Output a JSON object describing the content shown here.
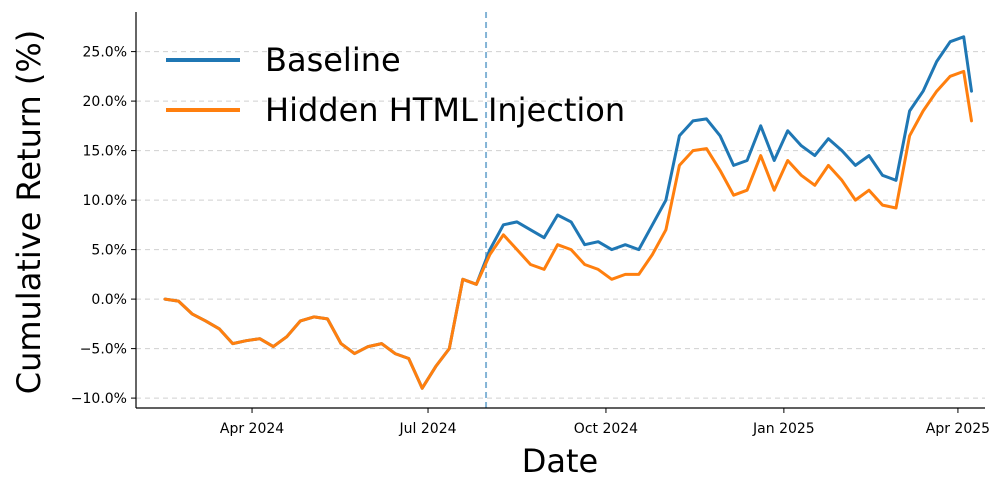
{
  "chart_data": {
    "type": "line",
    "xlabel": "Date",
    "ylabel": "Cumulative Return (%)",
    "ylim": [
      -11,
      29
    ],
    "xlim": [
      "2024-02-01",
      "2025-04-15"
    ],
    "y_ticks": [
      -10,
      -5,
      0,
      5,
      10,
      15,
      20,
      25
    ],
    "y_tick_labels": [
      "−10.0%",
      "−5.0%",
      "0.0%",
      "5.0%",
      "10.0%",
      "15.0%",
      "20.0%",
      "25.0%"
    ],
    "x_ticks": [
      "2024-04-01",
      "2024-07-01",
      "2024-10-01",
      "2025-01-01",
      "2025-04-01"
    ],
    "x_tick_labels": [
      "Apr 2024",
      "Jul 2024",
      "Oct 2024",
      "Jan 2025",
      "Apr 2025"
    ],
    "grid": "horizontal dashed",
    "legend_position": "top-left",
    "vline": {
      "date": "2024-07-31",
      "color": "#1f77b4",
      "style": "dashed"
    },
    "x": [
      "2024-02-16",
      "2024-02-23",
      "2024-03-01",
      "2024-03-08",
      "2024-03-15",
      "2024-03-22",
      "2024-03-29",
      "2024-04-05",
      "2024-04-12",
      "2024-04-19",
      "2024-04-26",
      "2024-05-03",
      "2024-05-10",
      "2024-05-17",
      "2024-05-24",
      "2024-05-31",
      "2024-06-07",
      "2024-06-14",
      "2024-06-21",
      "2024-06-28",
      "2024-07-05",
      "2024-07-12",
      "2024-07-19",
      "2024-07-26",
      "2024-08-02",
      "2024-08-09",
      "2024-08-16",
      "2024-08-23",
      "2024-08-30",
      "2024-09-06",
      "2024-09-13",
      "2024-09-20",
      "2024-09-27",
      "2024-10-04",
      "2024-10-11",
      "2024-10-18",
      "2024-10-25",
      "2024-11-01",
      "2024-11-08",
      "2024-11-15",
      "2024-11-22",
      "2024-11-29",
      "2024-12-06",
      "2024-12-13",
      "2024-12-20",
      "2024-12-27",
      "2025-01-03",
      "2025-01-10",
      "2025-01-17",
      "2025-01-24",
      "2025-01-31",
      "2025-02-07",
      "2025-02-14",
      "2025-02-21",
      "2025-02-28",
      "2025-03-07",
      "2025-03-14",
      "2025-03-21",
      "2025-03-28",
      "2025-04-04",
      "2025-04-08"
    ],
    "series": [
      {
        "name": "Baseline",
        "color": "#1f77b4",
        "values": [
          0.0,
          -0.2,
          -1.5,
          -2.2,
          -3.0,
          -4.5,
          -4.2,
          -4.0,
          -4.8,
          -3.8,
          -2.2,
          -1.8,
          -2.0,
          -4.5,
          -5.5,
          -4.8,
          -4.5,
          -5.5,
          -6.0,
          -9.0,
          -6.8,
          -5.0,
          2.0,
          1.5,
          5.0,
          7.5,
          7.8,
          7.0,
          6.2,
          8.5,
          7.8,
          5.5,
          5.8,
          5.0,
          5.5,
          5.0,
          7.5,
          10.0,
          16.5,
          18.0,
          18.2,
          16.5,
          13.5,
          14.0,
          17.5,
          14.0,
          17.0,
          15.5,
          14.5,
          16.2,
          15.0,
          13.5,
          14.5,
          12.5,
          12.0,
          19.0,
          21.0,
          24.0,
          26.0,
          26.5,
          21.0
        ]
      },
      {
        "name": "Hidden HTML Injection",
        "color": "#ff7f0e",
        "values": [
          0.0,
          -0.2,
          -1.5,
          -2.2,
          -3.0,
          -4.5,
          -4.2,
          -4.0,
          -4.8,
          -3.8,
          -2.2,
          -1.8,
          -2.0,
          -4.5,
          -5.5,
          -4.8,
          -4.5,
          -5.5,
          -6.0,
          -9.0,
          -6.8,
          -5.0,
          2.0,
          1.5,
          4.5,
          6.5,
          5.0,
          3.5,
          3.0,
          5.5,
          5.0,
          3.5,
          3.0,
          2.0,
          2.5,
          2.5,
          4.5,
          7.0,
          13.5,
          15.0,
          15.2,
          13.0,
          10.5,
          11.0,
          14.5,
          11.0,
          14.0,
          12.5,
          11.5,
          13.5,
          12.0,
          10.0,
          11.0,
          9.5,
          9.2,
          16.5,
          19.0,
          21.0,
          22.5,
          23.0,
          18.0
        ]
      }
    ]
  }
}
